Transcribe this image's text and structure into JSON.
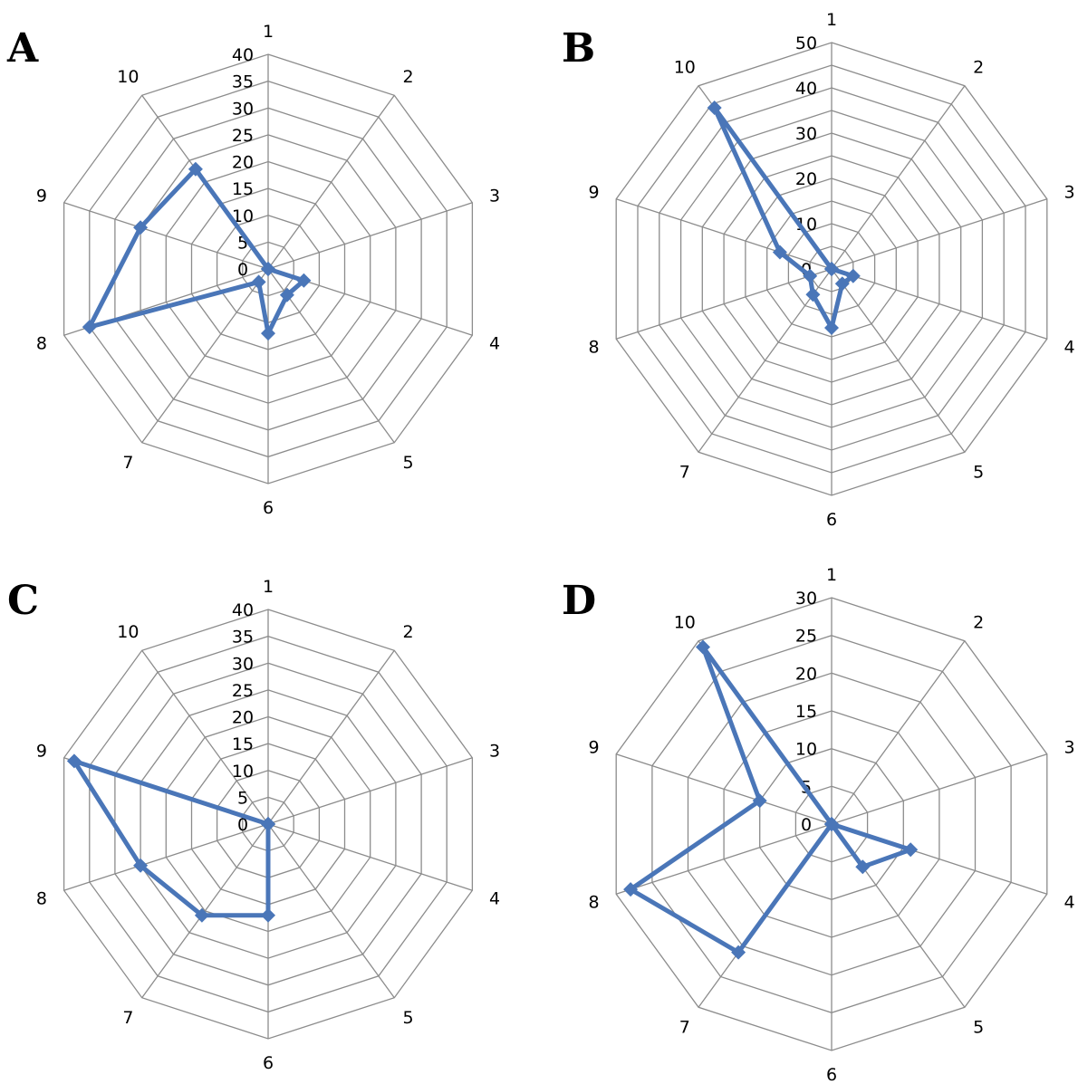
{
  "colors": {
    "series": "#4a76b8",
    "grid": "#8c8c8c"
  },
  "chart_data": [
    {
      "panel": "A",
      "type": "radar",
      "categories": [
        "1",
        "2",
        "3",
        "4",
        "5",
        "6",
        "7",
        "8",
        "9",
        "10"
      ],
      "rmax": 40,
      "step": 5,
      "tick_labels": [
        "0",
        "5",
        "10",
        "15",
        "20",
        "25",
        "30",
        "35",
        "40"
      ],
      "values": [
        0,
        0,
        0,
        7,
        6,
        12,
        3,
        35,
        25,
        23
      ]
    },
    {
      "panel": "B",
      "type": "radar",
      "categories": [
        "1",
        "2",
        "3",
        "4",
        "5",
        "6",
        "7",
        "8",
        "9",
        "10"
      ],
      "rmax": 50,
      "step": 5,
      "tick_labels": [
        "0",
        "10",
        "20",
        "30",
        "40",
        "50"
      ],
      "values": [
        0,
        0,
        0,
        5,
        4,
        13,
        7,
        5,
        12,
        44
      ]
    },
    {
      "panel": "C",
      "type": "radar",
      "categories": [
        "1",
        "2",
        "3",
        "4",
        "5",
        "6",
        "7",
        "8",
        "9",
        "10"
      ],
      "rmax": 40,
      "step": 5,
      "tick_labels": [
        "0",
        "5",
        "10",
        "15",
        "20",
        "25",
        "30",
        "35",
        "40"
      ],
      "values": [
        0,
        0,
        0,
        0,
        0,
        17,
        21,
        25,
        38,
        0
      ]
    },
    {
      "panel": "D",
      "type": "radar",
      "categories": [
        "1",
        "2",
        "3",
        "4",
        "5",
        "6",
        "7",
        "8",
        "9",
        "10"
      ],
      "rmax": 30,
      "step": 5,
      "tick_labels": [
        "0",
        "5",
        "10",
        "15",
        "20",
        "25",
        "30"
      ],
      "values": [
        0,
        0,
        0,
        11,
        7,
        0,
        21,
        28,
        10,
        29
      ]
    }
  ]
}
